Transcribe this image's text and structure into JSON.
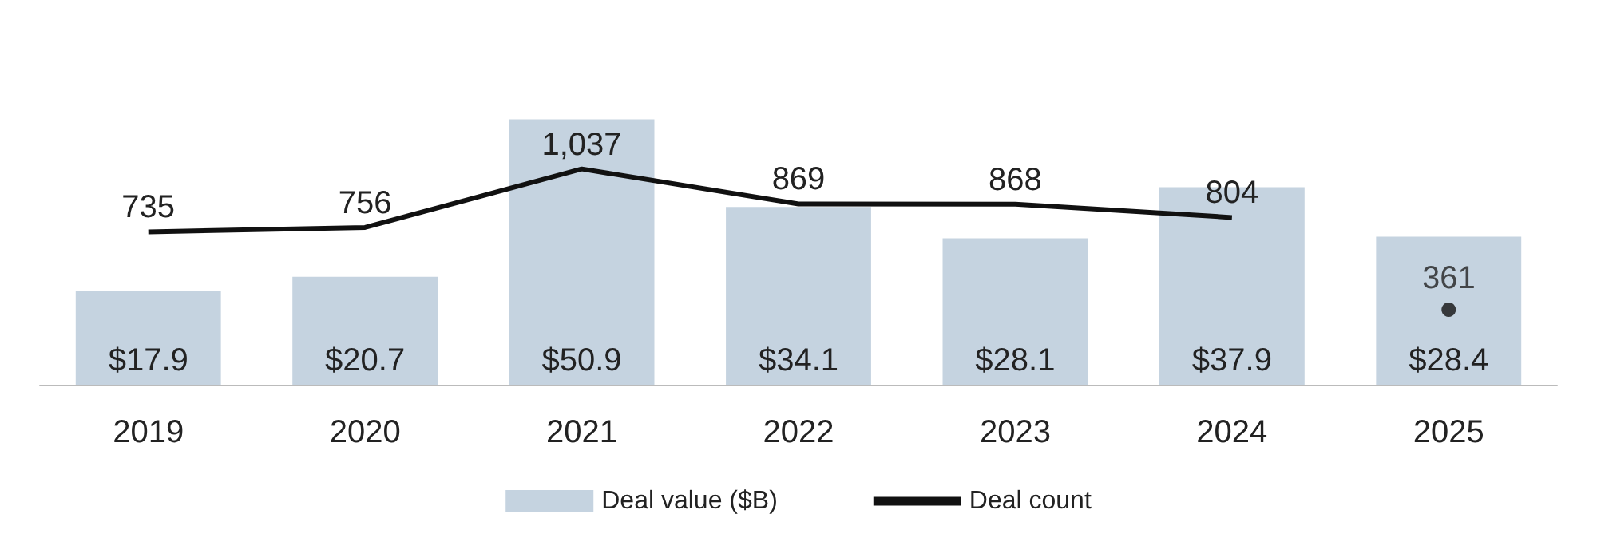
{
  "chart_data": {
    "type": "bar",
    "categories": [
      "2019",
      "2020",
      "2021",
      "2022",
      "2023",
      "2024",
      "2025"
    ],
    "series": [
      {
        "name": "Deal value ($B)",
        "color": "#c5d3e0",
        "values": [
          17.9,
          20.7,
          50.9,
          34.1,
          28.1,
          37.9,
          28.4
        ],
        "value_labels": [
          "$17.9",
          "$20.7",
          "$50.9",
          "$34.1",
          "$28.1",
          "$37.9",
          "$28.4"
        ]
      },
      {
        "name": "Deal count",
        "type": "line",
        "axis": "y2",
        "color": "#111111",
        "values": [
          735,
          756,
          1037,
          869,
          868,
          804,
          null
        ],
        "value_labels": [
          "735",
          "756",
          "1,037",
          "869",
          "868",
          "804",
          null
        ]
      },
      {
        "type": "scatter",
        "axis": "y2",
        "color": "#111111",
        "marker": "circle",
        "values": [
          null,
          null,
          null,
          null,
          null,
          null,
          361
        ],
        "value_labels": [
          null,
          null,
          null,
          null,
          null,
          null,
          "361"
        ]
      }
    ],
    "legend": "bottom",
    "marker": "none"
  }
}
